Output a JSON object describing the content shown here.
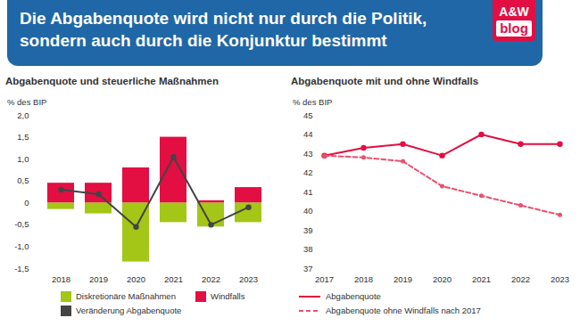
{
  "header": {
    "title": [
      "Die Abgabenquote wird nicht nur durch die Politik,",
      "sondern auch durch die Konjunktur bestimmt"
    ],
    "logo": [
      "A&W",
      "blog"
    ]
  },
  "chart_data": [
    {
      "type": "bar",
      "title": "Abgabenquote und steuerliche Maßnahmen",
      "ylabel": "% des BIP",
      "categories": [
        "2018",
        "2019",
        "2020",
        "2021",
        "2022",
        "2023"
      ],
      "stacked": true,
      "grid": false,
      "legend": "bottom",
      "series": [
        {
          "name": "Diskretionäre Maßnahmen",
          "color": "#a3c617",
          "values": [
            -0.15,
            -0.25,
            -1.35,
            -0.45,
            -0.55,
            -0.45
          ]
        },
        {
          "name": "Windfalls",
          "color": "#e30e42",
          "values": [
            0.45,
            0.45,
            0.8,
            1.5,
            0.05,
            0.35
          ]
        },
        {
          "name": "Veränderung Abgabenquote",
          "type": "line",
          "marker": "circle",
          "color": "#444444",
          "values": [
            0.3,
            0.2,
            -0.55,
            1.05,
            -0.5,
            -0.1
          ]
        }
      ],
      "ylim": [
        -1.5,
        2.0
      ],
      "yticks": [
        {
          "value": -1.5,
          "label": "-1,5"
        },
        {
          "value": -1.0,
          "label": "-1,0"
        },
        {
          "value": -0.5,
          "label": "-0,5"
        },
        0,
        {
          "value": 0.5,
          "label": "0,5"
        },
        {
          "value": 1.0,
          "label": "1,0"
        },
        {
          "value": 1.5,
          "label": "1,5"
        },
        {
          "value": 2.0,
          "label": "2,0"
        }
      ]
    },
    {
      "type": "line",
      "title": "Abgabenquote mit und ohne Windfalls",
      "ylabel": "% des BIP",
      "categories": [
        "2017",
        "2018",
        "2019",
        "2020",
        "2021",
        "2022",
        "2023"
      ],
      "grid": false,
      "legend": "bottom",
      "series": [
        {
          "name": "Abgabenquote",
          "color": "#e30e42",
          "line_style": "solid",
          "marker": "circle",
          "values": [
            42.9,
            43.3,
            43.5,
            42.9,
            44.0,
            43.5,
            43.5
          ]
        },
        {
          "name": "Abgabenquote ohne Windfalls nach 2017",
          "color": "#e9506f",
          "line_style": "dashed",
          "marker": "circle",
          "values": [
            42.9,
            42.8,
            42.6,
            41.3,
            40.8,
            40.3,
            39.8
          ]
        }
      ],
      "ylim": [
        37,
        45
      ],
      "yticks": [
        37,
        38,
        39,
        40,
        41,
        42,
        43,
        44,
        45
      ]
    }
  ]
}
